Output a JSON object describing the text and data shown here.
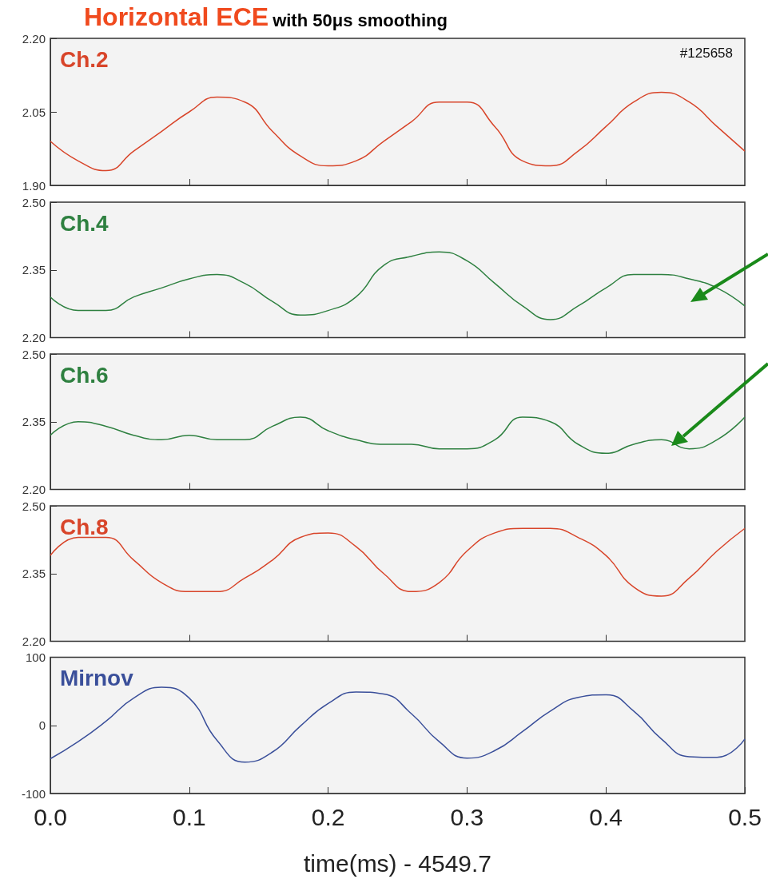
{
  "chart_data": [
    {
      "type": "line",
      "title": "Horizontal ECE",
      "subtitle": "with 50μs smoothing",
      "annotations": [
        "#125658"
      ],
      "tick_labels": "y",
      "x": [
        0,
        0.02,
        0.04,
        0.06,
        0.08,
        0.1,
        0.12,
        0.14,
        0.16,
        0.18,
        0.2,
        0.22,
        0.24,
        0.26,
        0.28,
        0.3,
        0.32,
        0.34,
        0.36,
        0.38,
        0.4,
        0.42,
        0.44,
        0.46,
        0.48,
        0.5
      ],
      "xlim": [
        0,
        0.5
      ],
      "xticks": [
        0.1,
        0.2,
        0.3,
        0.4
      ],
      "ylim": [
        1.9,
        2.2
      ],
      "yticks": [
        {
          "value": 1.9,
          "label": "1.90"
        },
        2.05,
        {
          "value": 2.2,
          "label": "2.20"
        }
      ],
      "series": [
        {
          "name": "Ch.2",
          "color": "#d8452a",
          "values": [
            1.99,
            1.95,
            1.93,
            1.97,
            2.01,
            2.05,
            2.08,
            2.07,
            2.01,
            1.96,
            1.94,
            1.95,
            1.99,
            2.03,
            2.07,
            2.07,
            2.02,
            1.95,
            1.94,
            1.97,
            2.02,
            2.07,
            2.09,
            2.07,
            2.02,
            1.97
          ]
        }
      ]
    },
    {
      "type": "line",
      "tick_labels": "y",
      "x": [
        0,
        0.02,
        0.04,
        0.06,
        0.08,
        0.1,
        0.12,
        0.14,
        0.16,
        0.18,
        0.2,
        0.22,
        0.24,
        0.26,
        0.28,
        0.3,
        0.32,
        0.34,
        0.36,
        0.38,
        0.4,
        0.42,
        0.44,
        0.46,
        0.48,
        0.5
      ],
      "xlim": [
        0,
        0.5
      ],
      "xticks": [
        0.1,
        0.2,
        0.3,
        0.4
      ],
      "ylim": [
        2.2,
        2.5
      ],
      "yticks": [
        {
          "value": 2.2,
          "label": "2.20"
        },
        2.35,
        {
          "value": 2.5,
          "label": "2.50"
        }
      ],
      "series": [
        {
          "name": "Ch.4",
          "color": "#2e8040",
          "values": [
            2.29,
            2.26,
            2.26,
            2.29,
            2.31,
            2.33,
            2.34,
            2.32,
            2.28,
            2.25,
            2.26,
            2.29,
            2.36,
            2.38,
            2.39,
            2.37,
            2.32,
            2.27,
            2.24,
            2.27,
            2.31,
            2.34,
            2.34,
            2.33,
            2.31,
            2.27
          ]
        }
      ]
    },
    {
      "type": "line",
      "tick_labels": "y",
      "x": [
        0,
        0.02,
        0.04,
        0.06,
        0.08,
        0.1,
        0.12,
        0.14,
        0.16,
        0.18,
        0.2,
        0.22,
        0.24,
        0.26,
        0.28,
        0.3,
        0.32,
        0.34,
        0.36,
        0.38,
        0.4,
        0.42,
        0.44,
        0.46,
        0.48,
        0.5
      ],
      "xlim": [
        0,
        0.5
      ],
      "xticks": [
        0.1,
        0.2,
        0.3,
        0.4
      ],
      "ylim": [
        2.2,
        2.5
      ],
      "yticks": [
        {
          "value": 2.2,
          "label": "2.20"
        },
        2.35,
        {
          "value": 2.5,
          "label": "2.50"
        }
      ],
      "series": [
        {
          "name": "Ch.6",
          "color": "#2e8040",
          "values": [
            2.32,
            2.35,
            2.34,
            2.32,
            2.31,
            2.32,
            2.31,
            2.31,
            2.34,
            2.36,
            2.33,
            2.31,
            2.3,
            2.3,
            2.29,
            2.29,
            2.31,
            2.36,
            2.35,
            2.3,
            2.28,
            2.3,
            2.31,
            2.29,
            2.31,
            2.36
          ]
        }
      ]
    },
    {
      "type": "line",
      "tick_labels": "y",
      "x": [
        0,
        0.02,
        0.04,
        0.06,
        0.08,
        0.1,
        0.12,
        0.14,
        0.16,
        0.18,
        0.2,
        0.22,
        0.24,
        0.26,
        0.28,
        0.3,
        0.32,
        0.34,
        0.36,
        0.38,
        0.4,
        0.42,
        0.44,
        0.46,
        0.48,
        0.5
      ],
      "xlim": [
        0,
        0.5
      ],
      "xticks": [
        0.1,
        0.2,
        0.3,
        0.4
      ],
      "ylim": [
        2.2,
        2.5
      ],
      "yticks": [
        {
          "value": 2.2,
          "label": "2.20"
        },
        2.35,
        {
          "value": 2.5,
          "label": "2.50"
        }
      ],
      "series": [
        {
          "name": "Ch.8",
          "color": "#d8452a",
          "values": [
            2.39,
            2.43,
            2.43,
            2.38,
            2.33,
            2.31,
            2.31,
            2.34,
            2.38,
            2.43,
            2.44,
            2.41,
            2.35,
            2.31,
            2.33,
            2.4,
            2.44,
            2.45,
            2.45,
            2.43,
            2.39,
            2.32,
            2.3,
            2.34,
            2.4,
            2.45
          ]
        }
      ]
    },
    {
      "type": "line",
      "xlabel": "time(ms) - 4549.7",
      "x": [
        0,
        0.02,
        0.04,
        0.06,
        0.08,
        0.1,
        0.12,
        0.14,
        0.16,
        0.18,
        0.2,
        0.22,
        0.24,
        0.26,
        0.28,
        0.3,
        0.32,
        0.34,
        0.36,
        0.38,
        0.4,
        0.42,
        0.44,
        0.46,
        0.48,
        0.5
      ],
      "xlim": [
        0,
        0.5
      ],
      "xticks": [
        {
          "value": 0,
          "label": "0.0"
        },
        0.1,
        0.2,
        0.3,
        0.4,
        0.5
      ],
      "ylim": [
        -100,
        100
      ],
      "yticks": [
        -100,
        0,
        100
      ],
      "series": [
        {
          "name": "Mirnov",
          "color": "#3a4f9a",
          "values": [
            -49,
            -24,
            6,
            40,
            56,
            40,
            -22,
            -54,
            -39,
            -1,
            32,
            49,
            46,
            17,
            -24,
            -48,
            -37,
            -9,
            21,
            41,
            45,
            21,
            -20,
            -46,
            -47,
            -20
          ]
        }
      ]
    }
  ]
}
